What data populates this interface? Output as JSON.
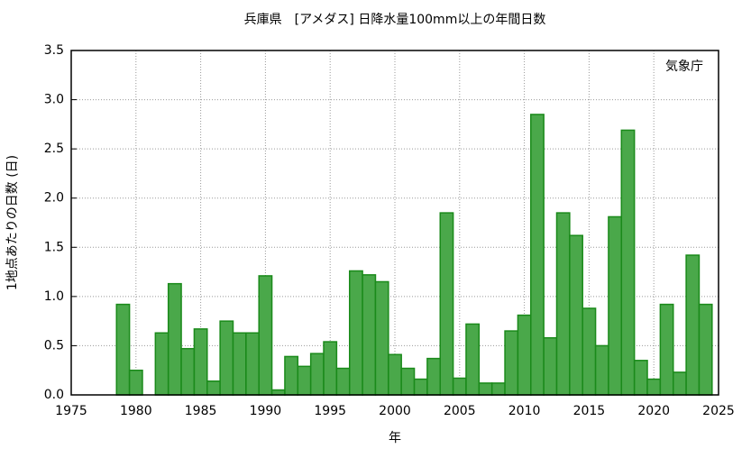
{
  "chart_data": {
    "type": "bar",
    "title": "兵庫県　[アメダス] 日降水量100mm以上の年間日数",
    "y_label": "1地点あたりの日数 (日)",
    "x_label": "年",
    "annotation": "気象庁",
    "x": [
      1979,
      1980,
      1982,
      1983,
      1984,
      1985,
      1986,
      1987,
      1988,
      1989,
      1990,
      1991,
      1992,
      1993,
      1994,
      1995,
      1996,
      1997,
      1998,
      1999,
      2000,
      2001,
      2002,
      2003,
      2004,
      2005,
      2006,
      2007,
      2008,
      2009,
      2010,
      2011,
      2012,
      2013,
      2014,
      2015,
      2016,
      2017,
      2018,
      2019,
      2020,
      2021,
      2022,
      2023,
      2024
    ],
    "values": [
      0.92,
      0.25,
      0.63,
      1.13,
      0.47,
      0.67,
      0.14,
      0.75,
      0.63,
      0.63,
      1.21,
      0.05,
      0.39,
      0.29,
      0.42,
      0.54,
      0.27,
      1.26,
      1.22,
      1.15,
      0.41,
      0.27,
      0.16,
      0.37,
      1.85,
      0.17,
      0.72,
      0.12,
      0.12,
      0.65,
      0.81,
      2.85,
      0.58,
      1.85,
      1.62,
      0.88,
      0.5,
      1.81,
      2.69,
      0.35,
      0.16,
      0.92,
      0.23,
      1.42,
      0.92
    ],
    "color": "#4aa84a",
    "edge_color": "#1a8a1a",
    "xlim": [
      1975,
      2025
    ],
    "xticks": [
      1975,
      1980,
      1985,
      1990,
      1995,
      2000,
      2005,
      2010,
      2015,
      2020,
      2025
    ],
    "ylim": [
      0,
      3.5
    ],
    "yticks": [
      {
        "value": 0,
        "label": "0.0"
      },
      0.5,
      {
        "value": 1,
        "label": "1.0"
      },
      1.5,
      {
        "value": 2,
        "label": "2.0"
      },
      2.5,
      {
        "value": 3,
        "label": "3.0"
      },
      3.5
    ],
    "grid": true
  }
}
